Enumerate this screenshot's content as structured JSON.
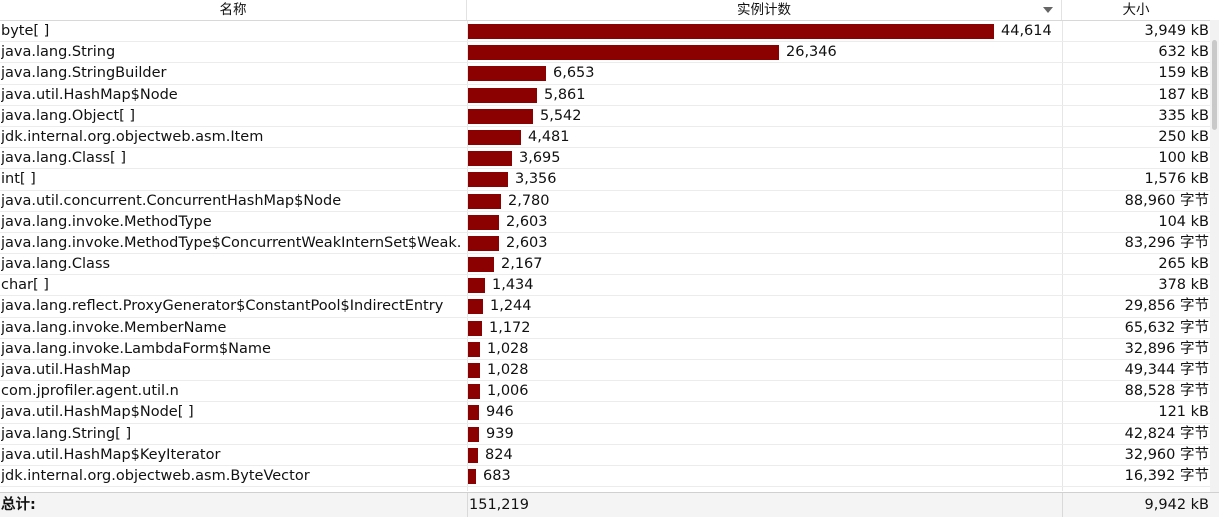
{
  "header": {
    "name_label": "名称",
    "count_label": "实例计数",
    "size_label": "大小"
  },
  "max_count": 44614,
  "rows": [
    {
      "name": "byte[ ]",
      "count": 44614,
      "count_label": "44,614",
      "size": "3,949 kB"
    },
    {
      "name": "java.lang.String",
      "count": 26346,
      "count_label": "26,346",
      "size": "632 kB"
    },
    {
      "name": "java.lang.StringBuilder",
      "count": 6653,
      "count_label": "6,653",
      "size": "159 kB"
    },
    {
      "name": "java.util.HashMap$Node",
      "count": 5861,
      "count_label": "5,861",
      "size": "187 kB"
    },
    {
      "name": "java.lang.Object[ ]",
      "count": 5542,
      "count_label": "5,542",
      "size": "335 kB"
    },
    {
      "name": "jdk.internal.org.objectweb.asm.Item",
      "count": 4481,
      "count_label": "4,481",
      "size": "250 kB"
    },
    {
      "name": "java.lang.Class[ ]",
      "count": 3695,
      "count_label": "3,695",
      "size": "100 kB"
    },
    {
      "name": "int[ ]",
      "count": 3356,
      "count_label": "3,356",
      "size": "1,576 kB"
    },
    {
      "name": "java.util.concurrent.ConcurrentHashMap$Node",
      "count": 2780,
      "count_label": "2,780",
      "size": "88,960 字节"
    },
    {
      "name": "java.lang.invoke.MethodType",
      "count": 2603,
      "count_label": "2,603",
      "size": "104 kB"
    },
    {
      "name": "java.lang.invoke.MethodType$ConcurrentWeakInternSet$Weak.",
      "count": 2603,
      "count_label": "2,603",
      "size": "83,296 字节"
    },
    {
      "name": "java.lang.Class",
      "count": 2167,
      "count_label": "2,167",
      "size": "265 kB"
    },
    {
      "name": "char[ ]",
      "count": 1434,
      "count_label": "1,434",
      "size": "378 kB"
    },
    {
      "name": "java.lang.reflect.ProxyGenerator$ConstantPool$IndirectEntry",
      "count": 1244,
      "count_label": "1,244",
      "size": "29,856 字节"
    },
    {
      "name": "java.lang.invoke.MemberName",
      "count": 1172,
      "count_label": "1,172",
      "size": "65,632 字节"
    },
    {
      "name": "java.lang.invoke.LambdaForm$Name",
      "count": 1028,
      "count_label": "1,028",
      "size": "32,896 字节"
    },
    {
      "name": "java.util.HashMap",
      "count": 1028,
      "count_label": "1,028",
      "size": "49,344 字节"
    },
    {
      "name": "com.jprofiler.agent.util.n",
      "count": 1006,
      "count_label": "1,006",
      "size": "88,528 字节"
    },
    {
      "name": "java.util.HashMap$Node[ ]",
      "count": 946,
      "count_label": "946",
      "size": "121 kB"
    },
    {
      "name": "java.lang.String[ ]",
      "count": 939,
      "count_label": "939",
      "size": "42,824 字节"
    },
    {
      "name": "java.util.HashMap$KeyIterator",
      "count": 824,
      "count_label": "824",
      "size": "32,960 字节"
    },
    {
      "name": "jdk.internal.org.objectweb.asm.ByteVector",
      "count": 683,
      "count_label": "683",
      "size": "16,392 字节"
    }
  ],
  "footer": {
    "label": "总计:",
    "count": "151,219",
    "size": "9,942 kB"
  },
  "colors": {
    "bar": "#8b0000"
  }
}
